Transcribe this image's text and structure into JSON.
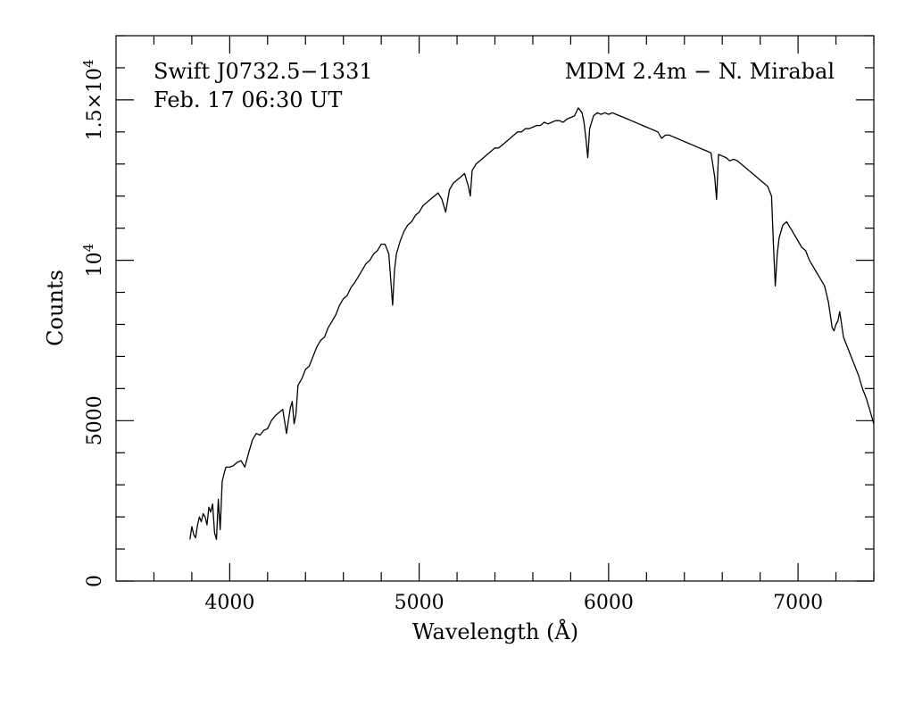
{
  "chart_data": {
    "type": "line",
    "xlabel": "Wavelength (Å)",
    "ylabel": "Counts",
    "xlim": [
      3400,
      7400
    ],
    "ylim": [
      0,
      17000
    ],
    "x_ticks": [
      4000,
      5000,
      6000,
      7000
    ],
    "y_ticks": [
      {
        "value": 0,
        "label": "0"
      },
      {
        "value": 5000,
        "label": "5000"
      },
      {
        "value": 10000,
        "label": "10",
        "exp": "4"
      },
      {
        "value": 15000,
        "label": "1.5×10",
        "exp": "4"
      }
    ],
    "annotations": {
      "object": "Swift J0732.5−1331",
      "date": "Feb. 17 06:30 UT",
      "telescope": "MDM 2.4m − N. Mirabal"
    },
    "series": [
      {
        "points": [
          [
            3790,
            1300
          ],
          [
            3800,
            1700
          ],
          [
            3810,
            1450
          ],
          [
            3820,
            1350
          ],
          [
            3830,
            1750
          ],
          [
            3840,
            2000
          ],
          [
            3850,
            1850
          ],
          [
            3860,
            2100
          ],
          [
            3870,
            2000
          ],
          [
            3880,
            1750
          ],
          [
            3890,
            2300
          ],
          [
            3900,
            2150
          ],
          [
            3910,
            2400
          ],
          [
            3920,
            1500
          ],
          [
            3930,
            1300
          ],
          [
            3940,
            2550
          ],
          [
            3950,
            1600
          ],
          [
            3960,
            3100
          ],
          [
            3970,
            3350
          ],
          [
            3980,
            3550
          ],
          [
            4000,
            3550
          ],
          [
            4020,
            3600
          ],
          [
            4040,
            3700
          ],
          [
            4060,
            3750
          ],
          [
            4080,
            3550
          ],
          [
            4100,
            4000
          ],
          [
            4120,
            4400
          ],
          [
            4140,
            4600
          ],
          [
            4160,
            4550
          ],
          [
            4180,
            4700
          ],
          [
            4200,
            4750
          ],
          [
            4220,
            5000
          ],
          [
            4240,
            5150
          ],
          [
            4260,
            5250
          ],
          [
            4280,
            5350
          ],
          [
            4300,
            4600
          ],
          [
            4310,
            5000
          ],
          [
            4320,
            5400
          ],
          [
            4330,
            5600
          ],
          [
            4340,
            4900
          ],
          [
            4350,
            5200
          ],
          [
            4360,
            6100
          ],
          [
            4380,
            6300
          ],
          [
            4400,
            6600
          ],
          [
            4420,
            6700
          ],
          [
            4440,
            7000
          ],
          [
            4460,
            7300
          ],
          [
            4480,
            7500
          ],
          [
            4500,
            7600
          ],
          [
            4520,
            7900
          ],
          [
            4540,
            8100
          ],
          [
            4560,
            8300
          ],
          [
            4580,
            8600
          ],
          [
            4600,
            8800
          ],
          [
            4620,
            8900
          ],
          [
            4640,
            9150
          ],
          [
            4660,
            9300
          ],
          [
            4680,
            9500
          ],
          [
            4700,
            9700
          ],
          [
            4720,
            9900
          ],
          [
            4740,
            10000
          ],
          [
            4760,
            10200
          ],
          [
            4780,
            10300
          ],
          [
            4800,
            10500
          ],
          [
            4820,
            10500
          ],
          [
            4840,
            10200
          ],
          [
            4860,
            8600
          ],
          [
            4870,
            9700
          ],
          [
            4880,
            10200
          ],
          [
            4900,
            10600
          ],
          [
            4920,
            10900
          ],
          [
            4940,
            11100
          ],
          [
            4960,
            11200
          ],
          [
            4980,
            11400
          ],
          [
            5000,
            11500
          ],
          [
            5020,
            11700
          ],
          [
            5040,
            11800
          ],
          [
            5060,
            11900
          ],
          [
            5080,
            12000
          ],
          [
            5100,
            12100
          ],
          [
            5120,
            11900
          ],
          [
            5140,
            11500
          ],
          [
            5160,
            12200
          ],
          [
            5180,
            12400
          ],
          [
            5200,
            12500
          ],
          [
            5220,
            12600
          ],
          [
            5240,
            12700
          ],
          [
            5260,
            12300
          ],
          [
            5270,
            12000
          ],
          [
            5280,
            12800
          ],
          [
            5300,
            13000
          ],
          [
            5320,
            13100
          ],
          [
            5340,
            13200
          ],
          [
            5360,
            13300
          ],
          [
            5380,
            13400
          ],
          [
            5400,
            13500
          ],
          [
            5420,
            13500
          ],
          [
            5440,
            13600
          ],
          [
            5460,
            13700
          ],
          [
            5480,
            13800
          ],
          [
            5500,
            13900
          ],
          [
            5520,
            14000
          ],
          [
            5540,
            14000
          ],
          [
            5560,
            14100
          ],
          [
            5580,
            14100
          ],
          [
            5600,
            14150
          ],
          [
            5620,
            14200
          ],
          [
            5640,
            14200
          ],
          [
            5660,
            14300
          ],
          [
            5680,
            14250
          ],
          [
            5700,
            14300
          ],
          [
            5720,
            14350
          ],
          [
            5740,
            14350
          ],
          [
            5760,
            14300
          ],
          [
            5780,
            14400
          ],
          [
            5800,
            14450
          ],
          [
            5820,
            14500
          ],
          [
            5840,
            14750
          ],
          [
            5860,
            14600
          ],
          [
            5870,
            14300
          ],
          [
            5880,
            13800
          ],
          [
            5890,
            13200
          ],
          [
            5900,
            14100
          ],
          [
            5920,
            14500
          ],
          [
            5940,
            14600
          ],
          [
            5960,
            14550
          ],
          [
            5980,
            14600
          ],
          [
            6000,
            14550
          ],
          [
            6020,
            14600
          ],
          [
            6040,
            14550
          ],
          [
            6060,
            14500
          ],
          [
            6080,
            14450
          ],
          [
            6100,
            14400
          ],
          [
            6120,
            14350
          ],
          [
            6140,
            14300
          ],
          [
            6160,
            14250
          ],
          [
            6180,
            14200
          ],
          [
            6200,
            14150
          ],
          [
            6220,
            14100
          ],
          [
            6240,
            14050
          ],
          [
            6260,
            14000
          ],
          [
            6280,
            13800
          ],
          [
            6300,
            13900
          ],
          [
            6320,
            13900
          ],
          [
            6340,
            13850
          ],
          [
            6360,
            13800
          ],
          [
            6380,
            13750
          ],
          [
            6400,
            13700
          ],
          [
            6420,
            13650
          ],
          [
            6440,
            13600
          ],
          [
            6460,
            13550
          ],
          [
            6480,
            13500
          ],
          [
            6500,
            13450
          ],
          [
            6520,
            13400
          ],
          [
            6540,
            13350
          ],
          [
            6560,
            12600
          ],
          [
            6570,
            11900
          ],
          [
            6580,
            13300
          ],
          [
            6600,
            13250
          ],
          [
            6620,
            13200
          ],
          [
            6640,
            13100
          ],
          [
            6660,
            13150
          ],
          [
            6680,
            13100
          ],
          [
            6700,
            13000
          ],
          [
            6720,
            12900
          ],
          [
            6740,
            12800
          ],
          [
            6760,
            12700
          ],
          [
            6780,
            12600
          ],
          [
            6800,
            12500
          ],
          [
            6820,
            12400
          ],
          [
            6840,
            12300
          ],
          [
            6860,
            12000
          ],
          [
            6870,
            10500
          ],
          [
            6880,
            9200
          ],
          [
            6890,
            10200
          ],
          [
            6900,
            10700
          ],
          [
            6920,
            11100
          ],
          [
            6940,
            11200
          ],
          [
            6960,
            11000
          ],
          [
            6980,
            10800
          ],
          [
            7000,
            10600
          ],
          [
            7020,
            10400
          ],
          [
            7040,
            10300
          ],
          [
            7060,
            10000
          ],
          [
            7080,
            9800
          ],
          [
            7100,
            9600
          ],
          [
            7120,
            9400
          ],
          [
            7140,
            9200
          ],
          [
            7160,
            8700
          ],
          [
            7180,
            7900
          ],
          [
            7190,
            7800
          ],
          [
            7200,
            8000
          ],
          [
            7210,
            8100
          ],
          [
            7220,
            8400
          ],
          [
            7240,
            7600
          ],
          [
            7260,
            7300
          ],
          [
            7280,
            7000
          ],
          [
            7300,
            6700
          ],
          [
            7320,
            6400
          ],
          [
            7340,
            6000
          ],
          [
            7360,
            5700
          ],
          [
            7380,
            5300
          ],
          [
            7400,
            4900
          ]
        ]
      }
    ]
  }
}
